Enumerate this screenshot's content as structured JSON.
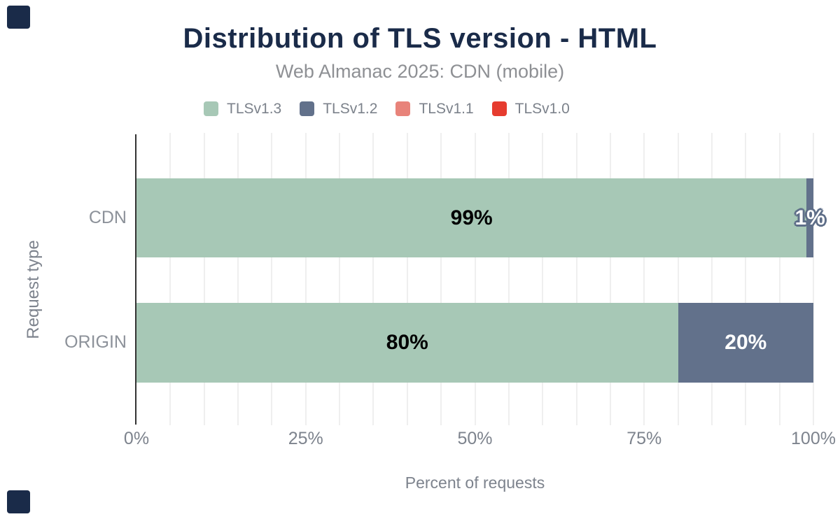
{
  "title": "Distribution of TLS version - HTML",
  "subtitle": "Web Almanac 2025: CDN (mobile)",
  "colors": {
    "brand_navy": "#1a2b49",
    "green": "#a7c8b6",
    "slate": "#62718b",
    "salmon": "#e8837a",
    "red": "#e63c2f",
    "axis_line": "#333333",
    "gridline": "#efefef",
    "muted_text": "#7d838d",
    "category_text": "#8d929a",
    "subtitle_text": "#8e9094",
    "legend_text": "#7c828b",
    "label_on_green": "#000000",
    "label_on_slate": "#ffffff",
    "label_outline": "#5e6e88"
  },
  "chart_data": {
    "type": "bar",
    "orientation": "horizontal",
    "stacked": true,
    "title": "Distribution of TLS version - HTML",
    "subtitle": "Web Almanac 2025: CDN (mobile)",
    "categories": [
      "CDN",
      "ORIGIN"
    ],
    "series": [
      {
        "name": "TLSv1.3",
        "color": "#a7c8b6",
        "values": [
          99,
          80
        ],
        "labels": [
          "99%",
          "80%"
        ]
      },
      {
        "name": "TLSv1.2",
        "color": "#62718b",
        "values": [
          1,
          20
        ],
        "labels": [
          "1%",
          "20%"
        ]
      },
      {
        "name": "TLSv1.1",
        "color": "#e8837a",
        "values": [
          0,
          0
        ],
        "labels": [
          "",
          ""
        ]
      },
      {
        "name": "TLSv1.0",
        "color": "#e63c2f",
        "values": [
          0,
          0
        ],
        "labels": [
          "",
          ""
        ]
      }
    ],
    "xlabel": "Percent of requests",
    "ylabel": "Request type",
    "xlim": [
      0,
      100
    ],
    "x_ticks": [
      "0%",
      "25%",
      "50%",
      "75%",
      "100%"
    ],
    "gridline_step_percent": 5,
    "grid": true,
    "legend_position": "top-center"
  }
}
